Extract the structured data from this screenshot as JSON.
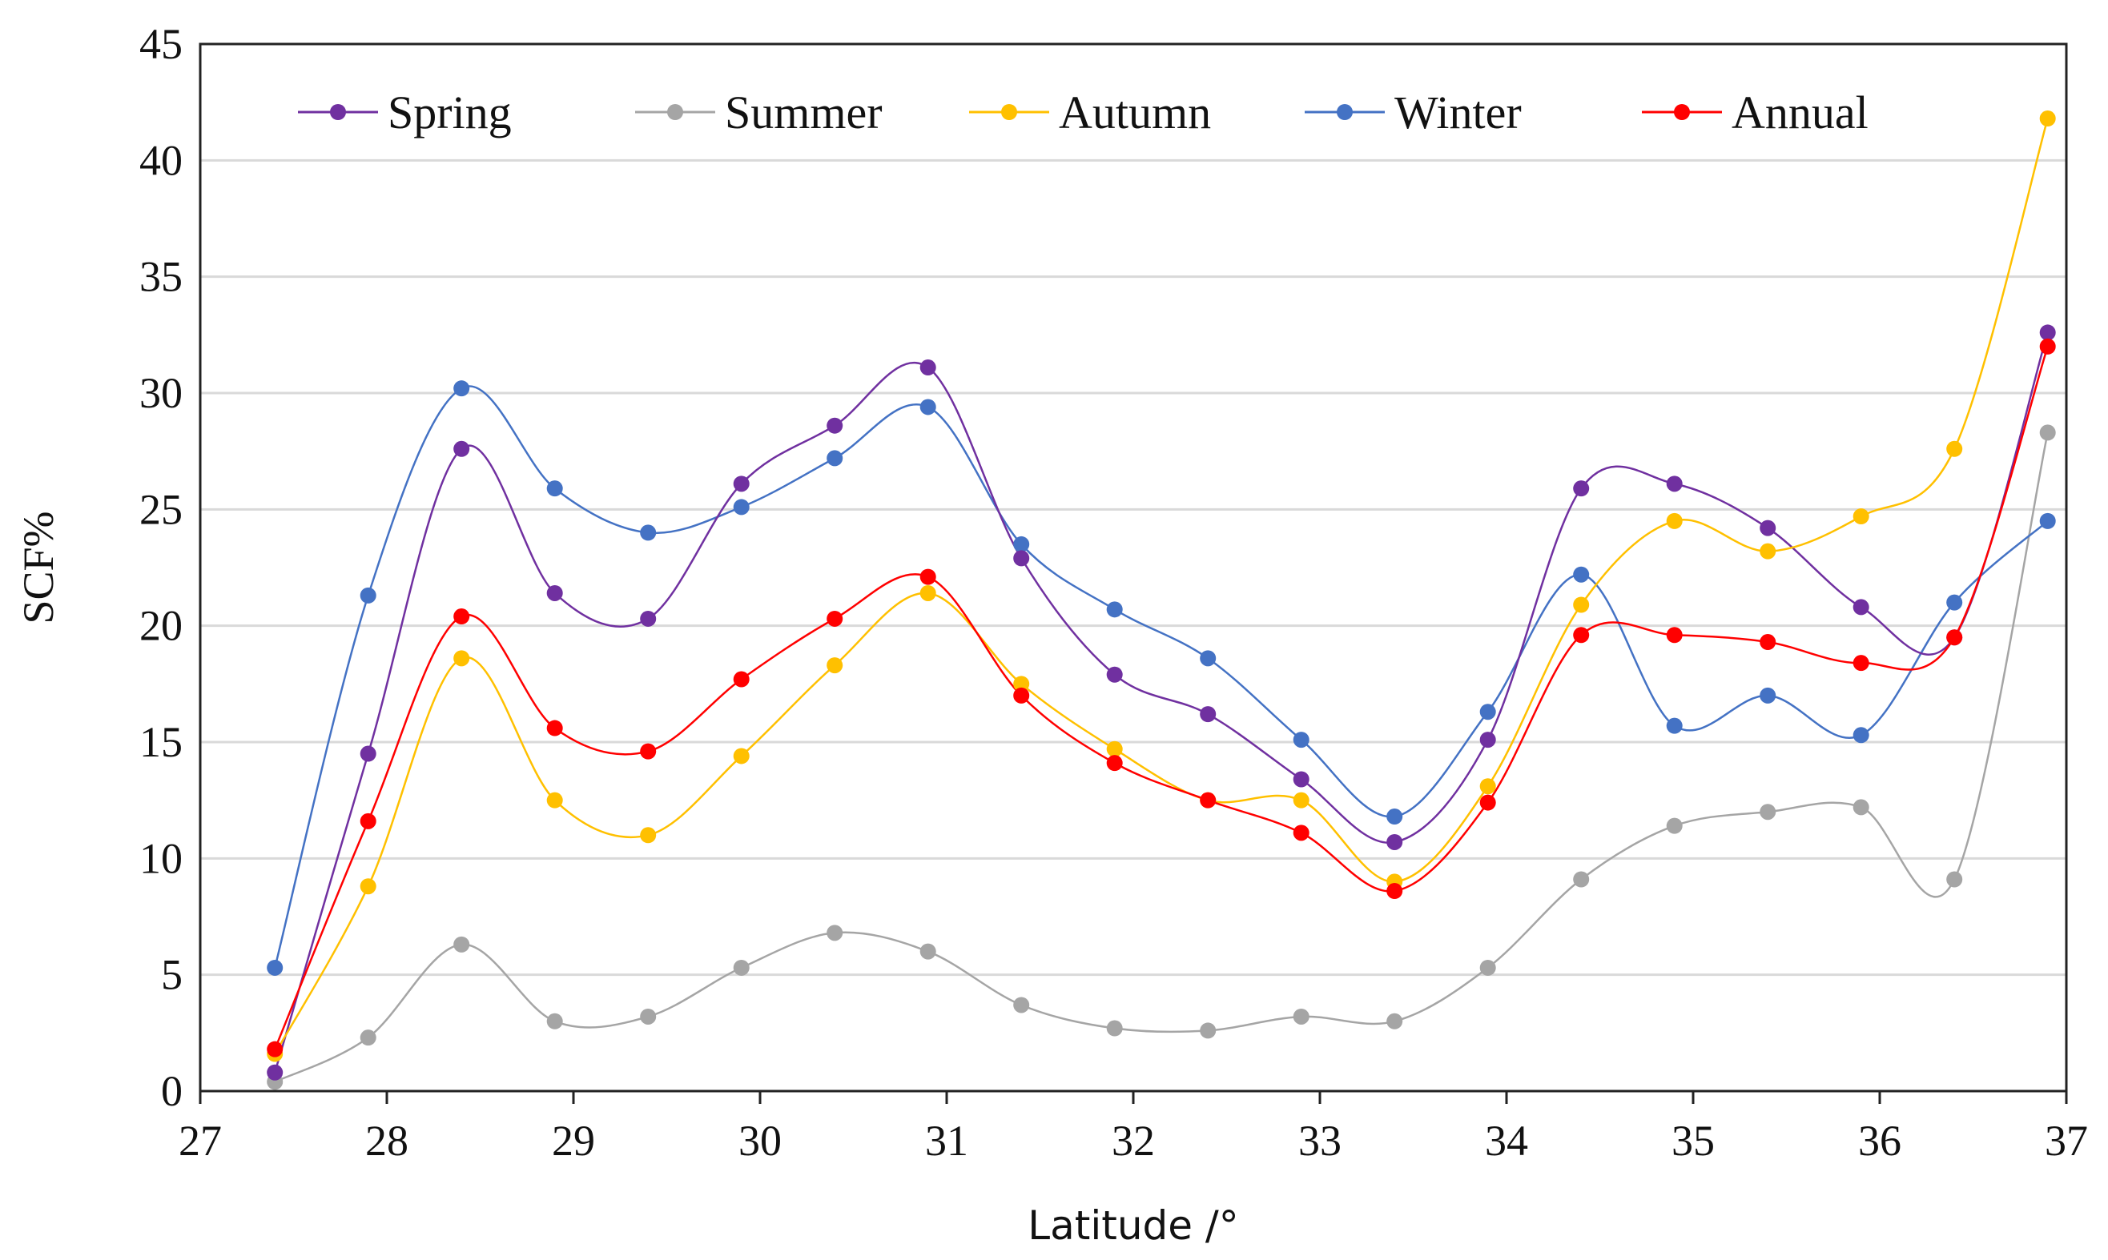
{
  "chart_data": {
    "type": "line",
    "title": "",
    "xlabel": "Latitude /°",
    "ylabel": "SCF%",
    "xlim": [
      27,
      37
    ],
    "ylim": [
      0,
      45
    ],
    "x_ticks": [
      27,
      28,
      29,
      30,
      31,
      32,
      33,
      34,
      35,
      36,
      37
    ],
    "y_ticks": [
      0,
      5,
      10,
      15,
      20,
      25,
      30,
      35,
      40,
      45
    ],
    "x_tick_labels": [
      "27",
      "28",
      "29",
      "30",
      "31",
      "32",
      "33",
      "34",
      "35",
      "36",
      "37"
    ],
    "y_tick_labels": [
      "0",
      "5",
      "10",
      "15",
      "20",
      "25",
      "30",
      "35",
      "40",
      "45"
    ],
    "grid": "horizontal",
    "legend_position": "top",
    "x": [
      27.4,
      27.9,
      28.4,
      28.9,
      29.4,
      29.9,
      30.4,
      30.9,
      31.4,
      31.9,
      32.4,
      32.9,
      33.4,
      33.9,
      34.4,
      34.9,
      35.4,
      35.9,
      36.4,
      36.9
    ],
    "series": [
      {
        "name": "Spring",
        "color": "#7030a0",
        "values": [
          0.8,
          14.5,
          27.6,
          21.4,
          20.3,
          26.1,
          28.6,
          31.1,
          22.9,
          17.9,
          16.2,
          13.4,
          10.7,
          15.1,
          25.9,
          26.1,
          24.2,
          20.8,
          19.5,
          32.6
        ]
      },
      {
        "name": "Summer",
        "color": "#a5a5a5",
        "values": [
          0.4,
          2.3,
          6.3,
          3.0,
          3.2,
          5.3,
          6.8,
          6.0,
          3.7,
          2.7,
          2.6,
          3.2,
          3.0,
          5.3,
          9.1,
          11.4,
          12.0,
          12.2,
          9.1,
          28.3
        ]
      },
      {
        "name": "Autumn",
        "color": "#ffc000",
        "values": [
          1.6,
          8.8,
          18.6,
          12.5,
          11.0,
          14.4,
          18.3,
          21.4,
          17.5,
          14.7,
          12.5,
          12.5,
          9.0,
          13.1,
          20.9,
          24.5,
          23.2,
          24.7,
          27.6,
          41.8
        ]
      },
      {
        "name": "Winter",
        "color": "#4472c4",
        "values": [
          5.3,
          21.3,
          30.2,
          25.9,
          24.0,
          25.1,
          27.2,
          29.4,
          23.5,
          20.7,
          18.6,
          15.1,
          11.8,
          16.3,
          22.2,
          15.7,
          17.0,
          15.3,
          21.0,
          24.5
        ]
      },
      {
        "name": "Annual",
        "color": "#ff0000",
        "values": [
          1.8,
          11.6,
          20.4,
          15.6,
          14.6,
          17.7,
          20.3,
          22.1,
          17.0,
          14.1,
          12.5,
          11.1,
          8.6,
          12.4,
          19.6,
          19.6,
          19.3,
          18.4,
          19.5,
          32.0
        ]
      }
    ]
  }
}
